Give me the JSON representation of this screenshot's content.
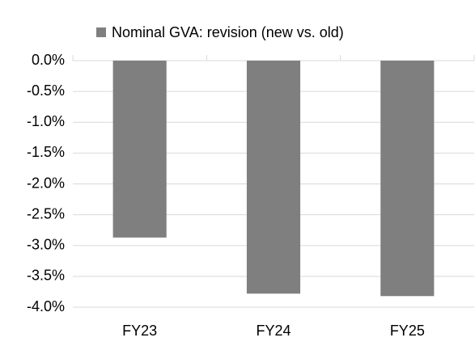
{
  "chart_data": {
    "type": "bar",
    "categories": [
      "FY23",
      "FY24",
      "FY25"
    ],
    "series": [
      {
        "name": "Nominal GVA: revision (new vs. old)",
        "color": "#7f7f7f",
        "values": [
          -2.87,
          -3.78,
          -3.82
        ]
      }
    ],
    "ylim": [
      -4,
      0
    ],
    "yticks": [
      {
        "value": 0,
        "label": "0.0%"
      },
      {
        "value": -0.5,
        "label": "-0.5%"
      },
      {
        "value": -1,
        "label": "-1.0%"
      },
      {
        "value": -1.5,
        "label": "-1.5%"
      },
      {
        "value": -2,
        "label": "-2.0%"
      },
      {
        "value": -2.5,
        "label": "-2.5%"
      },
      {
        "value": -3,
        "label": "-3.0%"
      },
      {
        "value": -3.5,
        "label": "-3.5%"
      },
      {
        "value": -4,
        "label": "-4.0%"
      }
    ],
    "grid": true,
    "legend": "top"
  }
}
